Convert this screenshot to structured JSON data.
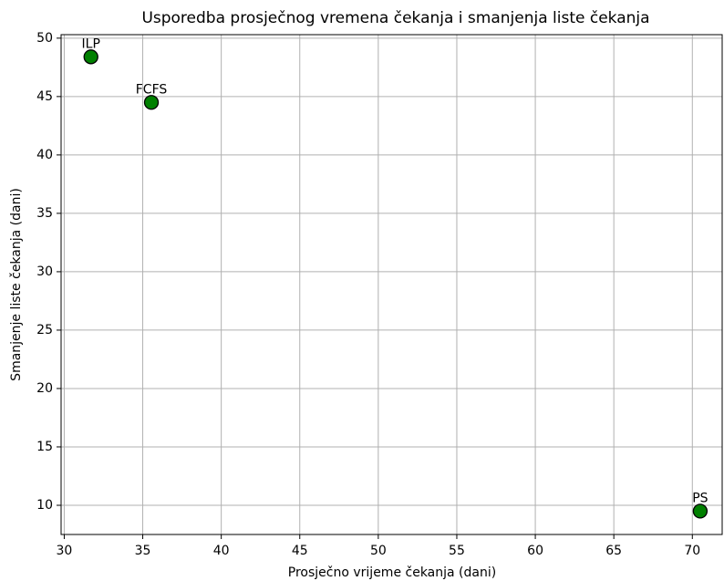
{
  "chart_data": {
    "type": "scatter",
    "title": "Usporedba prosječnog vremena čekanja i smanjenja liste čekanja",
    "x_label": "Prosječno vrijeme čekanja (dani)",
    "y_label": "Smanjenje liste čekanja (dani)",
    "series": [
      {
        "labels": [
          "ILP",
          "FCFS",
          "PS"
        ],
        "color": "#008000",
        "edgecolor": "#000000",
        "x": [
          31.7,
          35.55,
          70.5
        ],
        "values": [
          48.4,
          44.5,
          9.5
        ]
      }
    ],
    "xlim": [
      29.8,
      71.9
    ],
    "xticks": [
      30,
      35,
      40,
      45,
      50,
      55,
      60,
      65,
      70
    ],
    "ylim": [
      7.5,
      50.3
    ],
    "yticks": [
      10,
      15,
      20,
      25,
      30,
      35,
      40,
      45,
      50
    ],
    "grid": true
  }
}
